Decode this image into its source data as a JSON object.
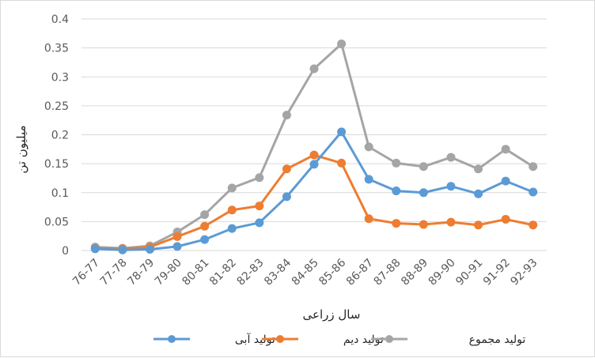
{
  "chart_data": {
    "type": "line",
    "title": "",
    "xlabel": "سال زراعی",
    "ylabel": "میلیون تن",
    "ylim": [
      0,
      0.4
    ],
    "yticks": [
      "0",
      "0.05",
      "0.1",
      "0.15",
      "0.2",
      "0.25",
      "0.3",
      "0.35",
      "0.4"
    ],
    "grid": "horizontal",
    "legend": "bottom",
    "categories": [
      "76-77",
      "77-78",
      "78-79",
      "79-80",
      "80-81",
      "81-82",
      "82-83",
      "83-84",
      "84-85",
      "85-86",
      "86-87",
      "87-88",
      "88-89",
      "89-90",
      "90-91",
      "91-92",
      "92-93"
    ],
    "series": [
      {
        "name": "تولید آبی",
        "color": "#5b9bd5",
        "values": [
          0.003,
          0.001,
          0.002,
          0.007,
          0.019,
          0.038,
          0.048,
          0.093,
          0.149,
          0.205,
          0.123,
          0.103,
          0.1,
          0.111,
          0.098,
          0.12,
          0.101
        ]
      },
      {
        "name": "تولید دیم",
        "color": "#ed7d31",
        "values": [
          0.004,
          0.003,
          0.006,
          0.024,
          0.042,
          0.07,
          0.077,
          0.141,
          0.165,
          0.151,
          0.055,
          0.047,
          0.045,
          0.049,
          0.044,
          0.054,
          0.044
        ]
      },
      {
        "name": "تولید مجموع",
        "color": "#a5a5a5",
        "values": [
          0.006,
          0.004,
          0.008,
          0.032,
          0.062,
          0.108,
          0.126,
          0.234,
          0.314,
          0.357,
          0.179,
          0.151,
          0.145,
          0.161,
          0.141,
          0.175,
          0.145
        ]
      }
    ]
  }
}
